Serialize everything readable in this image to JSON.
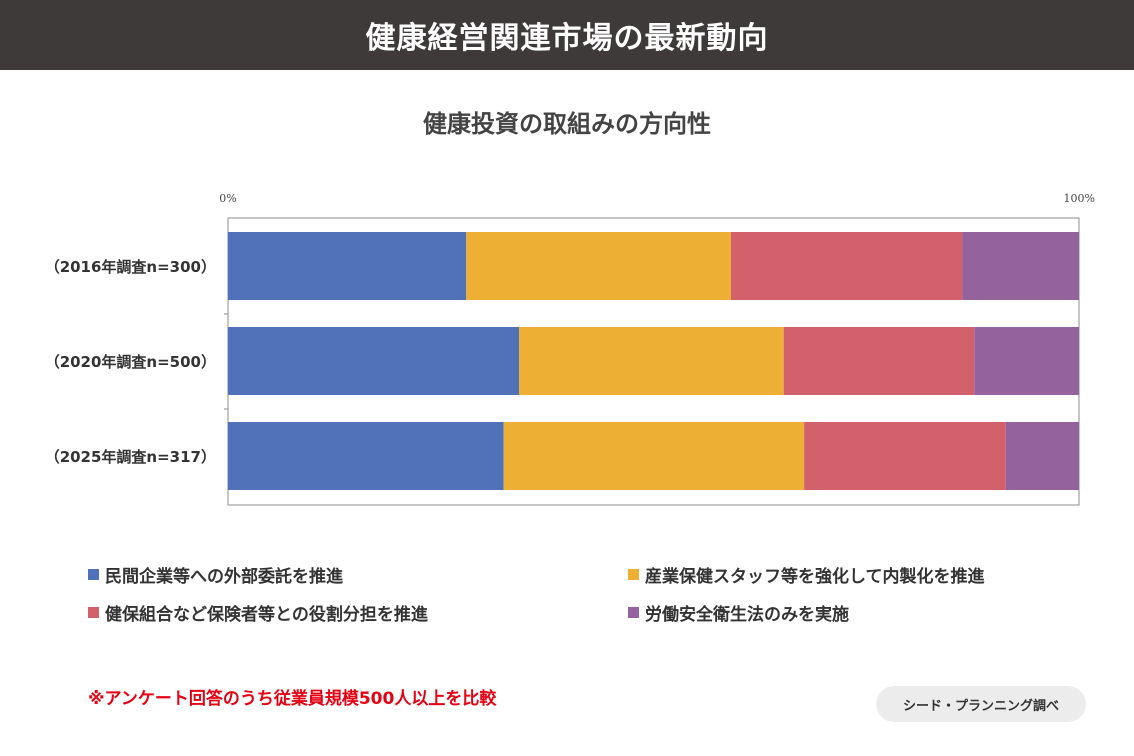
{
  "header": {
    "title": "健康経営関連市場の最新動向"
  },
  "chart_data": {
    "type": "bar",
    "orientation": "horizontal",
    "stacked": "percent",
    "title": "健康投資の取組みの方向性",
    "xtick_labels": [
      "0%",
      "100%"
    ],
    "xlim": [
      0,
      100
    ],
    "grid": false,
    "legend_position": "bottom",
    "categories": [
      "（2016年調査n=300）",
      "（2020年調査n=500）",
      "（2025年調査n=317）"
    ],
    "series": [
      {
        "name": "民間企業等への外部委託を推進",
        "color": "#4f72b8",
        "values": [
          28.0,
          34.2,
          32.4
        ]
      },
      {
        "name": "産業保健スタッフ等を強化して内製化を推進",
        "color": "#eeb034",
        "values": [
          31.1,
          31.1,
          35.3
        ]
      },
      {
        "name": "健保組合など保険者等との役割分担を推進",
        "color": "#d3616c",
        "values": [
          27.2,
          22.4,
          23.7
        ]
      },
      {
        "name": "労働安全衛生法のみを実施",
        "color": "#94629d",
        "values": [
          13.7,
          12.3,
          8.6
        ]
      }
    ]
  },
  "footer": {
    "note": "※アンケート回答のうち従業員規模500人以上を比較",
    "source": "シード・プランニング調べ"
  }
}
